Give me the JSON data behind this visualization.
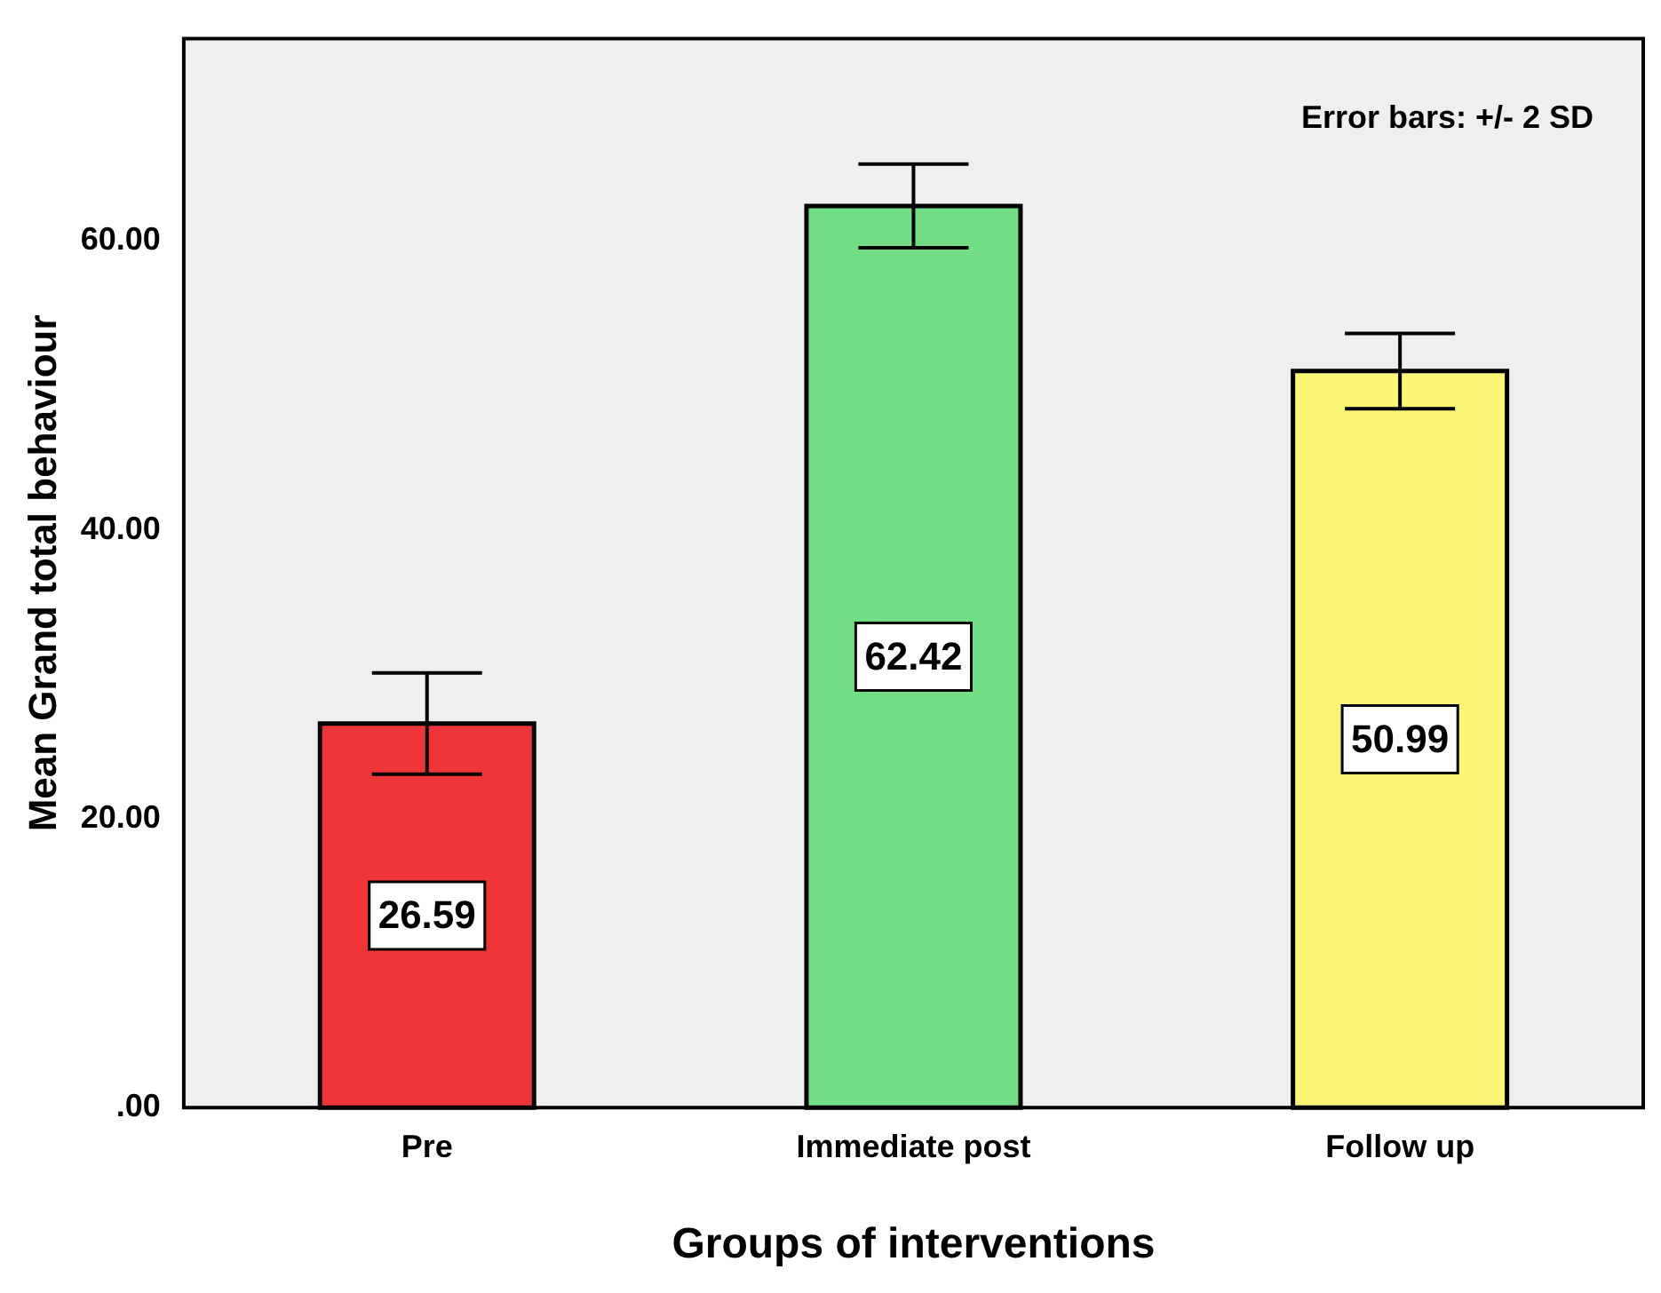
{
  "chart_data": {
    "type": "bar",
    "xlabel": "Groups of interventions",
    "ylabel": "Mean Grand total behaviour",
    "categories": [
      "Pre",
      "Immediate post",
      "Follow up"
    ],
    "values": [
      26.59,
      62.42,
      50.99
    ],
    "colors": [
      "#f03539",
      "#72de85",
      "#fbf575"
    ],
    "errors": [
      3.5,
      2.9,
      2.6
    ],
    "data_labels": true,
    "ylim": [
      0,
      74
    ],
    "yticks": [
      {
        "value": 0,
        "label": ".00"
      },
      {
        "value": 20,
        "label": "20.00"
      },
      {
        "value": 40,
        "label": "40.00"
      },
      {
        "value": 60,
        "label": "60.00"
      }
    ],
    "annotations": [
      "Error bars: +/- 2 SD"
    ],
    "grid": false,
    "legend": false
  }
}
